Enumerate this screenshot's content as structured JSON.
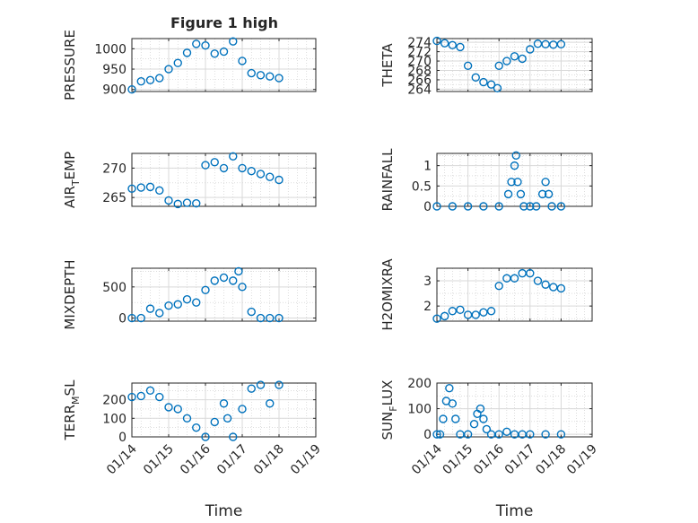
{
  "figure": {
    "title": "Figure 1 high",
    "marker_color": "#0072bd",
    "x_tick_labels": [
      "01/14",
      "01/15",
      "01/16",
      "01/17",
      "01/18",
      "01/19"
    ]
  },
  "chart_data": [
    {
      "type": "scatter",
      "ylabel": "PRESSURE",
      "xlabel": "",
      "xlim": [
        0,
        5
      ],
      "ylim": [
        895,
        1025
      ],
      "yticks": [
        900,
        950,
        1000
      ],
      "grid": true,
      "series": [
        {
          "x": [
            0.0,
            0.25,
            0.5,
            0.75,
            1.0,
            1.25,
            1.5,
            1.75,
            2.0,
            2.25,
            2.5,
            2.75,
            3.0,
            3.25,
            3.5,
            3.75,
            4.0
          ],
          "y": [
            900,
            920,
            923,
            928,
            950,
            965,
            990,
            1012,
            1008,
            988,
            993,
            1018,
            970,
            940,
            935,
            932,
            928
          ]
        }
      ]
    },
    {
      "type": "scatter",
      "ylabel": "THETA",
      "xlabel": "",
      "xlim": [
        0,
        5
      ],
      "ylim": [
        263.5,
        274.8
      ],
      "yticks": [
        264,
        266,
        268,
        270,
        272,
        274
      ],
      "grid": true,
      "series": [
        {
          "x": [
            0.0,
            0.25,
            0.5,
            0.75,
            1.0,
            1.25,
            1.5,
            1.75,
            1.95,
            2.0,
            2.25,
            2.5,
            2.75,
            3.0,
            3.25,
            3.5,
            3.75,
            4.0
          ],
          "y": [
            274.3,
            273.8,
            273.4,
            273.0,
            269.0,
            266.5,
            265.5,
            265.0,
            264.2,
            269.0,
            270.0,
            271.0,
            270.5,
            272.5,
            273.7,
            273.6,
            273.5,
            273.6
          ]
        }
      ]
    },
    {
      "type": "scatter",
      "ylabel": "AIR_TEMP",
      "xlabel": "",
      "xlim": [
        0,
        5
      ],
      "ylim": [
        263.5,
        272.5
      ],
      "yticks": [
        265,
        270
      ],
      "grid": true,
      "series": [
        {
          "x": [
            0.0,
            0.25,
            0.5,
            0.75,
            1.0,
            1.25,
            1.5,
            1.75,
            2.0,
            2.25,
            2.5,
            2.75,
            3.0,
            3.25,
            3.5,
            3.75,
            4.0
          ],
          "y": [
            266.5,
            266.7,
            266.8,
            266.2,
            264.5,
            263.9,
            264.1,
            264.0,
            270.5,
            271.0,
            270.0,
            272.0,
            270.0,
            269.5,
            269.0,
            268.5,
            268.0
          ]
        }
      ]
    },
    {
      "type": "scatter",
      "ylabel": "RAINFALL",
      "xlabel": "",
      "xlim": [
        0,
        5
      ],
      "ylim": [
        0,
        1.3
      ],
      "yticks": [
        0,
        0.5,
        1
      ],
      "grid": true,
      "series": [
        {
          "x": [
            0.0,
            0.5,
            1.0,
            1.5,
            2.0,
            2.3,
            2.4,
            2.5,
            2.55,
            2.6,
            2.7,
            2.8,
            3.0,
            3.2,
            3.4,
            3.5,
            3.6,
            3.7,
            4.0
          ],
          "y": [
            0,
            0,
            0,
            0,
            0,
            0.3,
            0.6,
            1.0,
            1.25,
            0.6,
            0.3,
            0,
            0,
            0,
            0.3,
            0.6,
            0.3,
            0,
            0
          ]
        }
      ]
    },
    {
      "type": "scatter",
      "ylabel": "MIXDEPTH",
      "xlabel": "",
      "xlim": [
        0,
        5
      ],
      "ylim": [
        -50,
        800
      ],
      "yticks": [
        0,
        500
      ],
      "grid": true,
      "series": [
        {
          "x": [
            0.0,
            0.25,
            0.5,
            0.75,
            1.0,
            1.25,
            1.5,
            1.75,
            2.0,
            2.25,
            2.5,
            2.75,
            2.9,
            3.0,
            3.25,
            3.5,
            3.75,
            4.0
          ],
          "y": [
            0,
            0,
            150,
            80,
            200,
            220,
            300,
            250,
            450,
            600,
            650,
            600,
            750,
            500,
            100,
            0,
            0,
            0
          ]
        }
      ]
    },
    {
      "type": "scatter",
      "ylabel": "H2OMIXRA",
      "xlabel": "",
      "xlim": [
        0,
        5
      ],
      "ylim": [
        1.4,
        3.5
      ],
      "yticks": [
        2,
        3
      ],
      "grid": true,
      "series": [
        {
          "x": [
            0.0,
            0.25,
            0.5,
            0.75,
            1.0,
            1.25,
            1.5,
            1.75,
            2.0,
            2.25,
            2.5,
            2.75,
            3.0,
            3.25,
            3.5,
            3.75,
            4.0
          ],
          "y": [
            1.5,
            1.6,
            1.8,
            1.85,
            1.65,
            1.65,
            1.75,
            1.8,
            2.8,
            3.1,
            3.1,
            3.3,
            3.3,
            3.0,
            2.85,
            2.75,
            2.7
          ]
        }
      ]
    },
    {
      "type": "scatter",
      "ylabel": "TERR_MSL",
      "xlabel": "Time",
      "xlim": [
        0,
        5
      ],
      "ylim": [
        0,
        290
      ],
      "yticks": [
        0,
        100,
        200
      ],
      "grid": true,
      "series": [
        {
          "x": [
            0.0,
            0.25,
            0.5,
            0.75,
            1.0,
            1.25,
            1.5,
            1.75,
            2.0,
            2.25,
            2.5,
            2.6,
            2.75,
            3.0,
            3.25,
            3.5,
            3.75,
            4.0
          ],
          "y": [
            215,
            220,
            250,
            215,
            160,
            150,
            100,
            50,
            0,
            80,
            180,
            100,
            0,
            150,
            260,
            280,
            180,
            280
          ]
        }
      ]
    },
    {
      "type": "scatter",
      "ylabel": "SUN_FLUX",
      "xlabel": "Time",
      "xlim": [
        0,
        5
      ],
      "ylim": [
        -10,
        200
      ],
      "yticks": [
        0,
        100,
        200
      ],
      "grid": true,
      "series": [
        {
          "x": [
            0.0,
            0.1,
            0.2,
            0.3,
            0.4,
            0.5,
            0.6,
            0.75,
            1.0,
            1.2,
            1.3,
            1.4,
            1.5,
            1.6,
            1.75,
            2.0,
            2.25,
            2.5,
            2.75,
            3.0,
            3.5,
            4.0
          ],
          "y": [
            0,
            0,
            60,
            130,
            180,
            120,
            60,
            0,
            0,
            40,
            80,
            100,
            60,
            20,
            0,
            0,
            10,
            0,
            0,
            0,
            0,
            0
          ]
        }
      ]
    }
  ]
}
